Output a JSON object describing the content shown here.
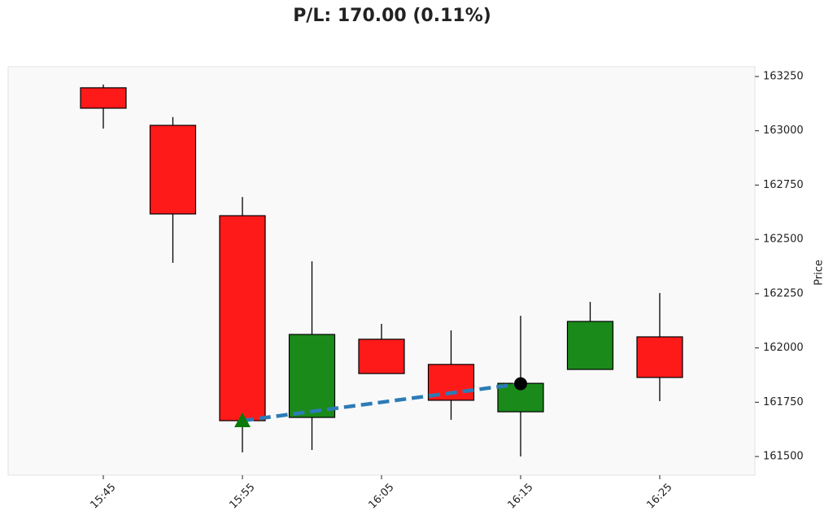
{
  "chart_data": {
    "type": "candlestick",
    "title": "P/L: 170.00 (0.11%)",
    "y_label": "Price",
    "categories": [
      "15:45",
      null,
      "15:55",
      null,
      "16:05",
      null,
      "16:15",
      null,
      "16:25"
    ],
    "open": [
      163198,
      163025,
      162609,
      161680,
      162040,
      161924,
      161706,
      161901,
      162051
    ],
    "high": [
      163213,
      163063,
      162695,
      162399,
      162111,
      162081,
      162148,
      162212,
      162253
    ],
    "low": [
      163010,
      162392,
      161519,
      161530,
      161882,
      161669,
      161500,
      161901,
      161755
    ],
    "close": [
      163104,
      162617,
      161665,
      162062,
      161882,
      161759,
      161837,
      162122,
      161864
    ],
    "up_color": "#1a8a1a",
    "down_color": "#ff1a1a",
    "trade": {
      "entry": {
        "x": "15:55",
        "price": 161665
      },
      "exit": {
        "x": "16:15",
        "price": 161835
      },
      "color": "#2c7bb6",
      "entry_color": "#0a7a0a",
      "exit_color": "#000000"
    },
    "ylim": [
      161414,
      163295
    ],
    "yticks": [
      161500,
      161750,
      162000,
      162250,
      162500,
      162750,
      163000,
      163250
    ]
  }
}
